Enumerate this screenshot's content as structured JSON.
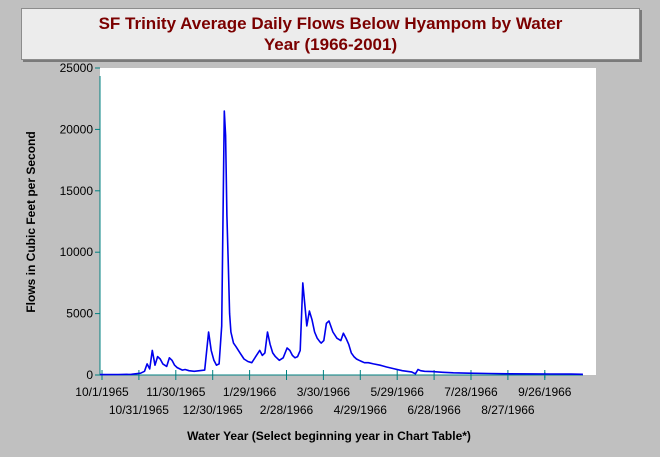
{
  "chart_data": {
    "type": "line",
    "title": "SF Trinity Average Daily Flows Below Hyampom by Water\nYear (1966-2001)",
    "xlabel": "Water Year (Select beginning year in Chart Table*)",
    "ylabel": "Flows in Cubic Feet per Second",
    "ylim": [
      0,
      25000
    ],
    "yticks": [
      0,
      5000,
      10000,
      15000,
      20000,
      25000
    ],
    "ytick_labels": [
      "0",
      "5000",
      "10000",
      "15000",
      "20000",
      "25000"
    ],
    "xlim": [
      "1965-10-01",
      "1966-10-15"
    ],
    "xtick_labels": [
      "10/1/1965",
      "10/31/1965",
      "11/30/1965",
      "12/30/1965",
      "1/29/1966",
      "2/28/1966",
      "3/30/1966",
      "4/29/1966",
      "5/29/1966",
      "6/28/1966",
      "7/28/1966",
      "8/27/1966",
      "9/26/1966"
    ],
    "grid": false,
    "line_color": "#0000ee",
    "axis_color": "#008080",
    "series": [
      {
        "x": [
          "1965-10-01",
          "1965-10-15",
          "1965-10-25",
          "1965-11-01",
          "1965-11-04",
          "1965-11-06",
          "1965-11-08",
          "1965-11-10",
          "1965-11-12",
          "1965-11-14",
          "1965-11-16",
          "1965-11-18",
          "1965-11-21",
          "1965-11-23",
          "1965-11-25",
          "1965-11-27",
          "1965-11-29",
          "1965-12-01",
          "1965-12-03",
          "1965-12-05",
          "1965-12-08",
          "1965-12-12",
          "1965-12-16",
          "1965-12-20",
          "1965-12-23",
          "1965-12-25",
          "1965-12-27",
          "1965-12-29",
          "1965-12-31",
          "1966-01-02",
          "1966-01-04",
          "1966-01-05",
          "1966-01-06",
          "1966-01-07",
          "1966-01-08",
          "1966-01-09",
          "1966-01-11",
          "1966-01-13",
          "1966-01-16",
          "1966-01-19",
          "1966-01-22",
          "1966-01-25",
          "1966-01-28",
          "1966-01-31",
          "1966-02-02",
          "1966-02-04",
          "1966-02-06",
          "1966-02-08",
          "1966-02-10",
          "1966-02-12",
          "1966-02-15",
          "1966-02-18",
          "1966-02-21",
          "1966-02-23",
          "1966-02-25",
          "1966-02-27",
          "1966-03-01",
          "1966-03-03",
          "1966-03-05",
          "1966-03-08",
          "1966-03-10",
          "1966-03-12",
          "1966-03-14",
          "1966-03-16",
          "1966-03-18",
          "1966-03-19",
          "1966-03-21",
          "1966-03-22",
          "1966-03-23",
          "1966-03-25",
          "1966-03-28",
          "1966-03-31",
          "1966-04-03",
          "1966-04-05",
          "1966-04-07",
          "1966-04-09",
          "1966-04-11",
          "1966-04-13",
          "1966-04-15",
          "1966-04-17",
          "1966-04-19",
          "1966-04-21",
          "1966-04-24",
          "1966-04-28",
          "1966-05-03",
          "1966-05-08",
          "1966-05-14",
          "1966-05-20",
          "1966-05-27",
          "1966-05-30",
          "1966-06-01",
          "1966-06-03",
          "1966-06-06",
          "1966-06-12",
          "1966-06-20",
          "1966-06-28",
          "1966-07-10",
          "1966-07-25",
          "1966-08-10",
          "1966-08-27",
          "1966-09-10",
          "1966-09-26",
          "1966-10-05"
        ],
        "values": [
          30,
          40,
          60,
          150,
          300,
          900,
          500,
          2000,
          800,
          1500,
          1300,
          900,
          700,
          1400,
          1200,
          800,
          600,
          500,
          400,
          450,
          350,
          300,
          350,
          400,
          3500,
          2000,
          1200,
          800,
          900,
          4000,
          21500,
          19500,
          13000,
          9000,
          5000,
          3500,
          2600,
          2300,
          1800,
          1300,
          1100,
          1000,
          1500,
          2000,
          1600,
          1800,
          3500,
          2500,
          1800,
          1500,
          1200,
          1400,
          2200,
          2000,
          1600,
          1400,
          1500,
          2000,
          7500,
          4000,
          5200,
          4500,
          3500,
          3000,
          2700,
          2600,
          2800,
          3500,
          4200,
          4400,
          3500,
          3000,
          2800,
          3400,
          3000,
          2500,
          1800,
          1500,
          1300,
          1200,
          1100,
          1000,
          1000,
          900,
          800,
          650,
          500,
          350,
          250,
          100,
          450,
          350,
          300,
          280,
          220,
          180,
          150,
          120,
          100,
          90,
          80,
          70,
          60
        ]
      }
    ]
  }
}
